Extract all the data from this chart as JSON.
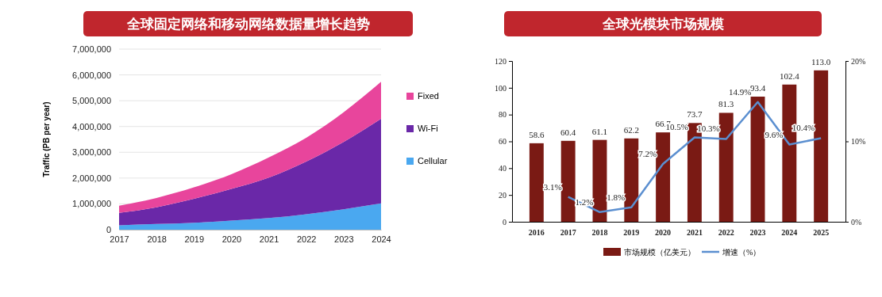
{
  "chart_data": [
    {
      "type": "area",
      "title": "全球固定网络和移动网络数据量增长趋势",
      "ylabel": "Traffic (PB per year)",
      "stacked": true,
      "categories": [
        "2017",
        "2018",
        "2019",
        "2020",
        "2021",
        "2022",
        "2023",
        "2024"
      ],
      "series": [
        {
          "name": "Cellular",
          "color": "#4aa8f0",
          "values": [
            170000,
            220000,
            270000,
            350000,
            450000,
            600000,
            790000,
            1020000
          ]
        },
        {
          "name": "Wi-Fi",
          "color": "#6a28a8",
          "values": [
            480000,
            650000,
            930000,
            1230000,
            1570000,
            2040000,
            2610000,
            3280000
          ]
        },
        {
          "name": "Fixed",
          "color": "#e8459c",
          "values": [
            280000,
            360000,
            440000,
            570000,
            780000,
            920000,
            1150000,
            1430000
          ]
        }
      ],
      "ylim": [
        0,
        7000000
      ],
      "yticks": [
        {
          "value": 0,
          "label": "0"
        },
        {
          "value": 1000000,
          "label": "1,000,000"
        },
        {
          "value": 2000000,
          "label": "2,000,000"
        },
        {
          "value": 3000000,
          "label": "3,000,000"
        },
        {
          "value": 4000000,
          "label": "4,000,000"
        },
        {
          "value": 5000000,
          "label": "5,000,000"
        },
        {
          "value": 6000000,
          "label": "6,000,000"
        },
        {
          "value": 7000000,
          "label": "7,000,000"
        }
      ],
      "grid": "y",
      "legend": "right"
    },
    {
      "type": "bar",
      "title": "全球光模块市场规模",
      "categories": [
        "2016",
        "2017",
        "2018",
        "2019",
        "2020",
        "2021",
        "2022",
        "2023",
        "2024",
        "2025"
      ],
      "series": [
        {
          "name": "市场规模（亿美元）",
          "type": "bar",
          "color": "#7a1a14",
          "values": [
            58.6,
            60.4,
            61.1,
            62.2,
            66.7,
            73.7,
            81.3,
            93.4,
            102.4,
            113.0
          ],
          "value_labels": [
            "58.6",
            "60.4",
            "61.1",
            "62.2",
            "66.7",
            "73.7",
            "81.3",
            "93.4",
            "102.4",
            "113.0"
          ]
        },
        {
          "name": "增速（%）",
          "type": "line",
          "axis": "y2",
          "color": "#5b8fd0",
          "values": [
            null,
            3.1,
            1.2,
            1.8,
            7.2,
            10.5,
            10.3,
            14.9,
            9.6,
            10.4
          ],
          "value_labels": [
            null,
            "3.1%",
            "1.2%",
            "1.8%",
            "7.2%",
            "10.5%",
            "10.3%",
            "14.9%",
            "9.6%",
            "10.4%"
          ]
        }
      ],
      "ylim": [
        0,
        120
      ],
      "yticks": [
        0,
        20,
        40,
        60,
        80,
        100,
        120
      ],
      "y2lim": [
        0,
        20
      ],
      "y2ticks": [
        {
          "value": 0,
          "label": "0%"
        },
        {
          "value": 10,
          "label": "10%"
        },
        {
          "value": 20,
          "label": "20%"
        }
      ],
      "legend": "bottom"
    }
  ]
}
